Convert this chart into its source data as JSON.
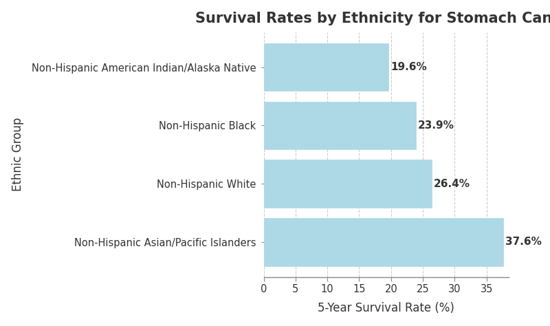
{
  "title": "Survival Rates by Ethnicity for Stomach Cancer",
  "categories": [
    "Non-Hispanic Asian/Pacific Islanders",
    "Non-Hispanic White",
    "Non-Hispanic Black",
    "Non-Hispanic American Indian/Alaska Native"
  ],
  "values": [
    37.6,
    26.4,
    23.9,
    19.6
  ],
  "bar_color": "#ADD8E6",
  "bar_edgecolor": "#ADD8E6",
  "xlabel": "5-Year Survival Rate (%)",
  "ylabel": "Ethnic Group",
  "xlim": [
    0,
    38.5
  ],
  "xticks": [
    0,
    5,
    10,
    15,
    20,
    25,
    30,
    35
  ],
  "title_fontsize": 15,
  "axis_label_fontsize": 12,
  "tick_fontsize": 10.5,
  "value_fontsize": 11,
  "background_color": "#ffffff",
  "grid_color": "#aaaaaa",
  "text_color": "#333333",
  "bar_height": 0.82
}
